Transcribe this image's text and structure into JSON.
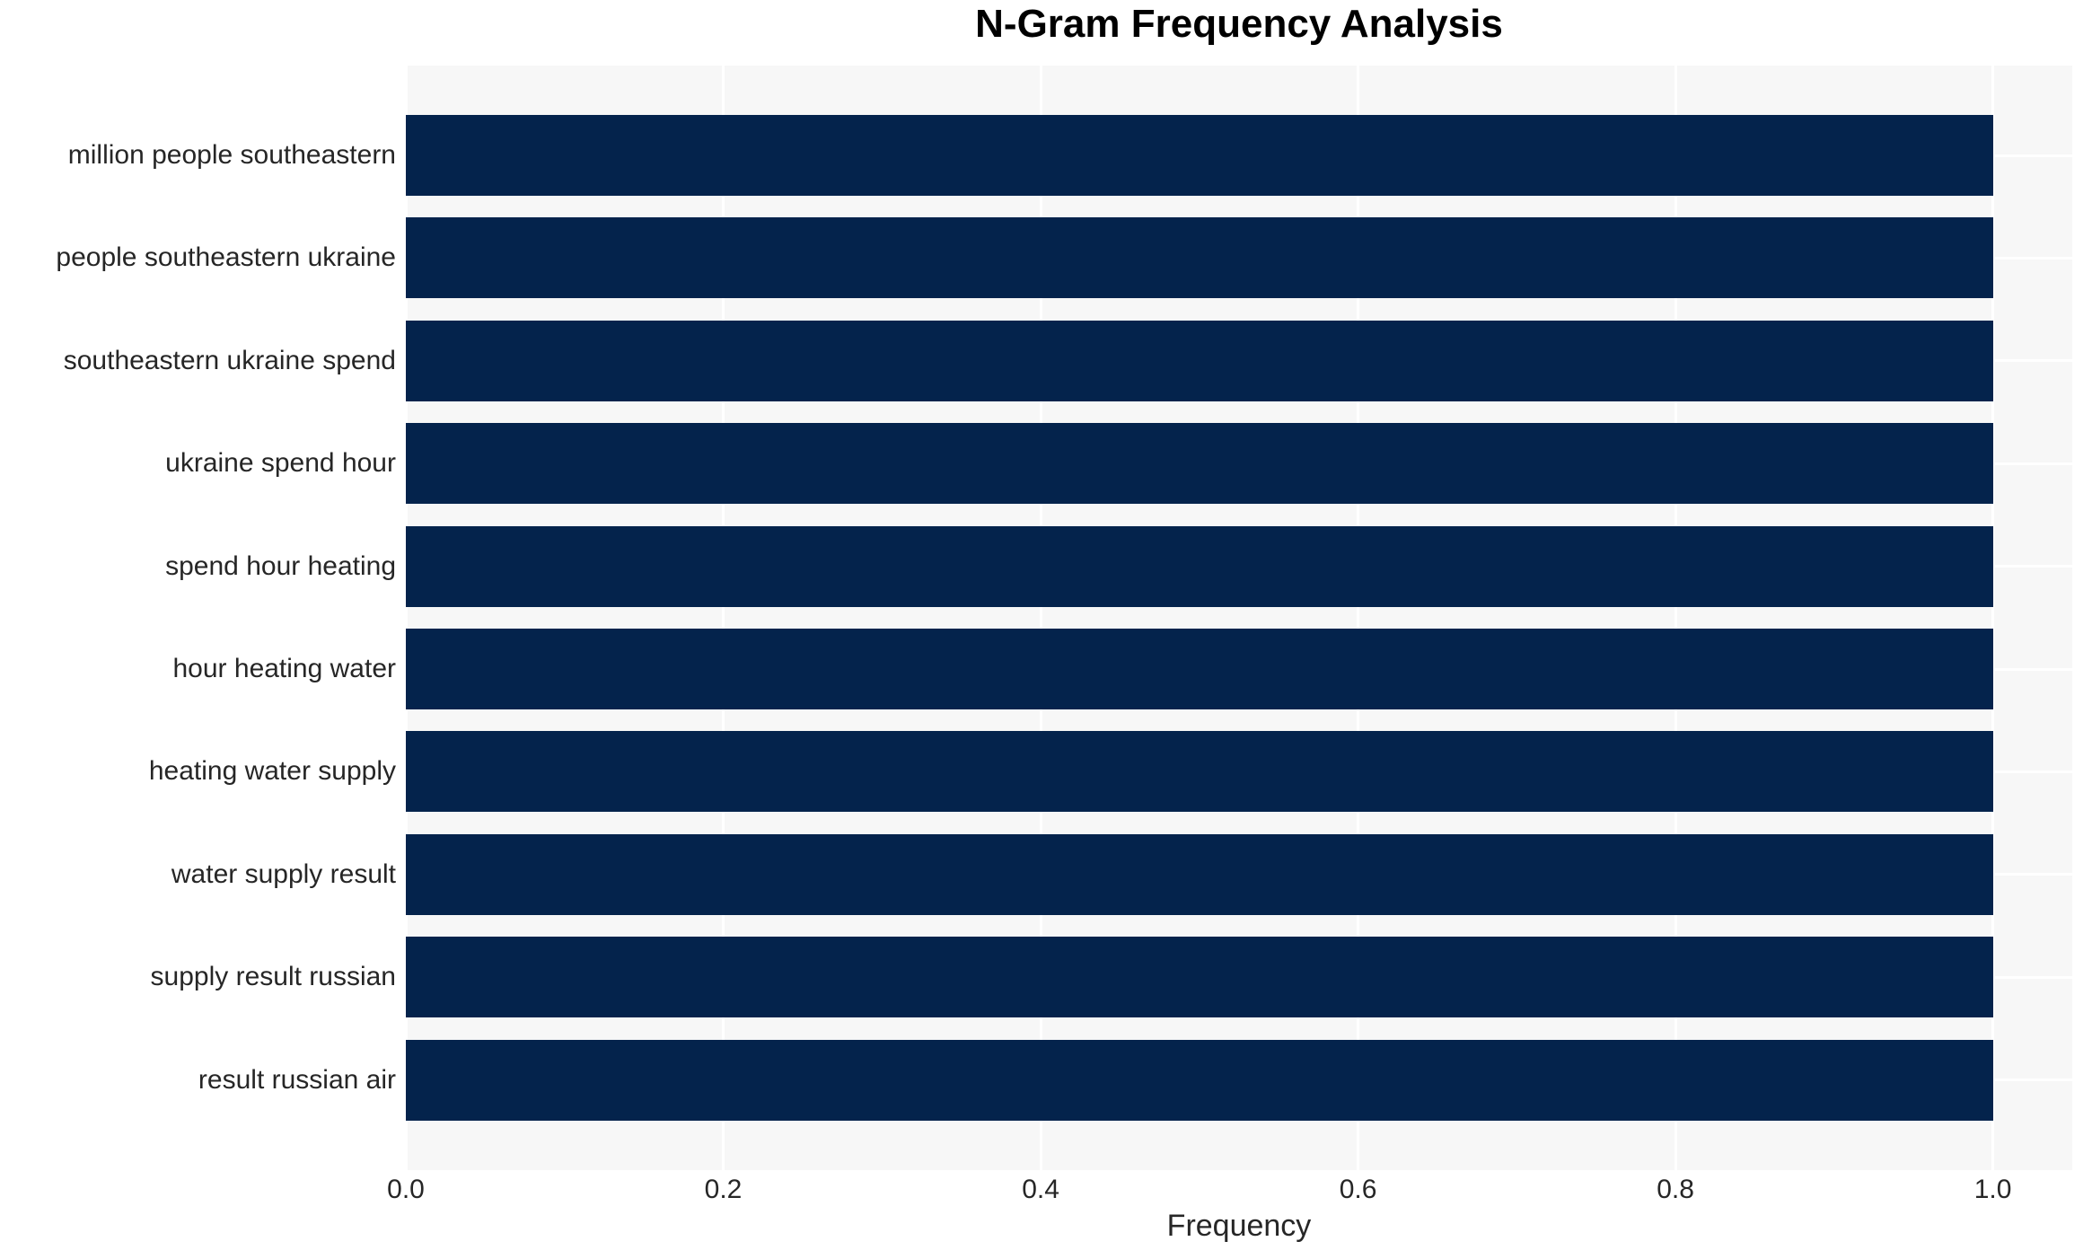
{
  "chart_data": {
    "type": "bar",
    "orientation": "horizontal",
    "title": "N-Gram Frequency Analysis",
    "xlabel": "Frequency",
    "ylabel": "",
    "categories": [
      "million people southeastern",
      "people southeastern ukraine",
      "southeastern ukraine spend",
      "ukraine spend hour",
      "spend hour heating",
      "hour heating water",
      "heating water supply",
      "water supply result",
      "supply result russian",
      "result russian air"
    ],
    "values": [
      1.0,
      1.0,
      1.0,
      1.0,
      1.0,
      1.0,
      1.0,
      1.0,
      1.0,
      1.0
    ],
    "xlim": [
      0.0,
      1.05
    ],
    "xticks": [
      0.0,
      0.2,
      0.4,
      0.6,
      0.8,
      1.0
    ],
    "xtick_labels": [
      "0.0",
      "0.2",
      "0.4",
      "0.6",
      "0.8",
      "1.0"
    ],
    "grid": "white vertical and horizontal gridlines on light plot background",
    "legend": "none",
    "colors": {
      "bar": "#04234c",
      "plot_background": "#f7f7f7",
      "gridline": "#ffffff",
      "tick_text": "#262626",
      "title_text": "#000000",
      "page_background": "#ffffff"
    }
  }
}
